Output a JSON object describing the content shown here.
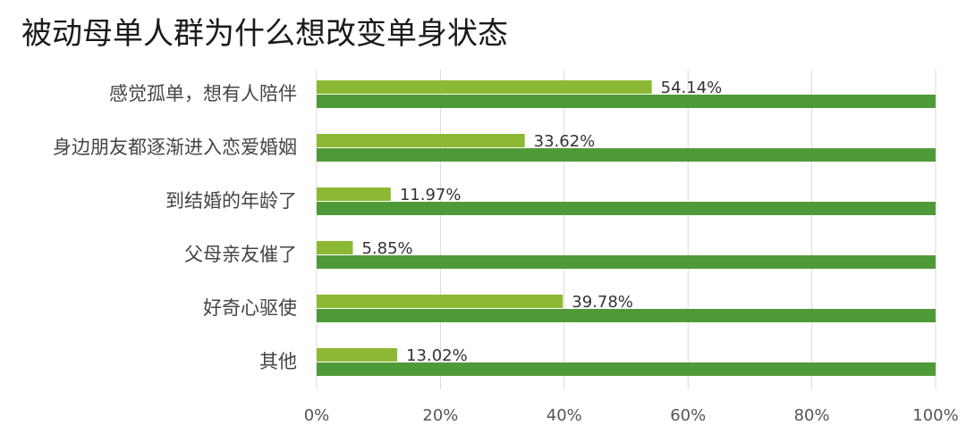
{
  "chart_data": {
    "type": "bar",
    "orientation": "horizontal",
    "title": "被动母单人群为什么想改变单身状态",
    "categories": [
      "感觉孤单，想有人陪伴",
      "身边朋友都逐渐进入恋爱婚姻",
      "到结婚的年龄了",
      "父母亲友催了",
      "好奇心驱使",
      "其他"
    ],
    "series": [
      {
        "values": [
          54.14,
          33.62,
          11.97,
          5.85,
          39.78,
          13.02
        ],
        "data_labels": [
          "54.14%",
          "33.62%",
          "11.97%",
          "5.85%",
          "39.78%",
          "13.02%"
        ],
        "color": "#8db833"
      },
      {
        "values": [
          100,
          100,
          100,
          100,
          100,
          100
        ],
        "color": "#4f9a38"
      }
    ],
    "xlim": [
      0,
      100
    ],
    "x_ticks": [
      0,
      20,
      40,
      60,
      80,
      100
    ],
    "x_tick_labels": [
      "0%",
      "20%",
      "40%",
      "60%",
      "80%",
      "100%"
    ],
    "grid": true,
    "legend": "none"
  }
}
